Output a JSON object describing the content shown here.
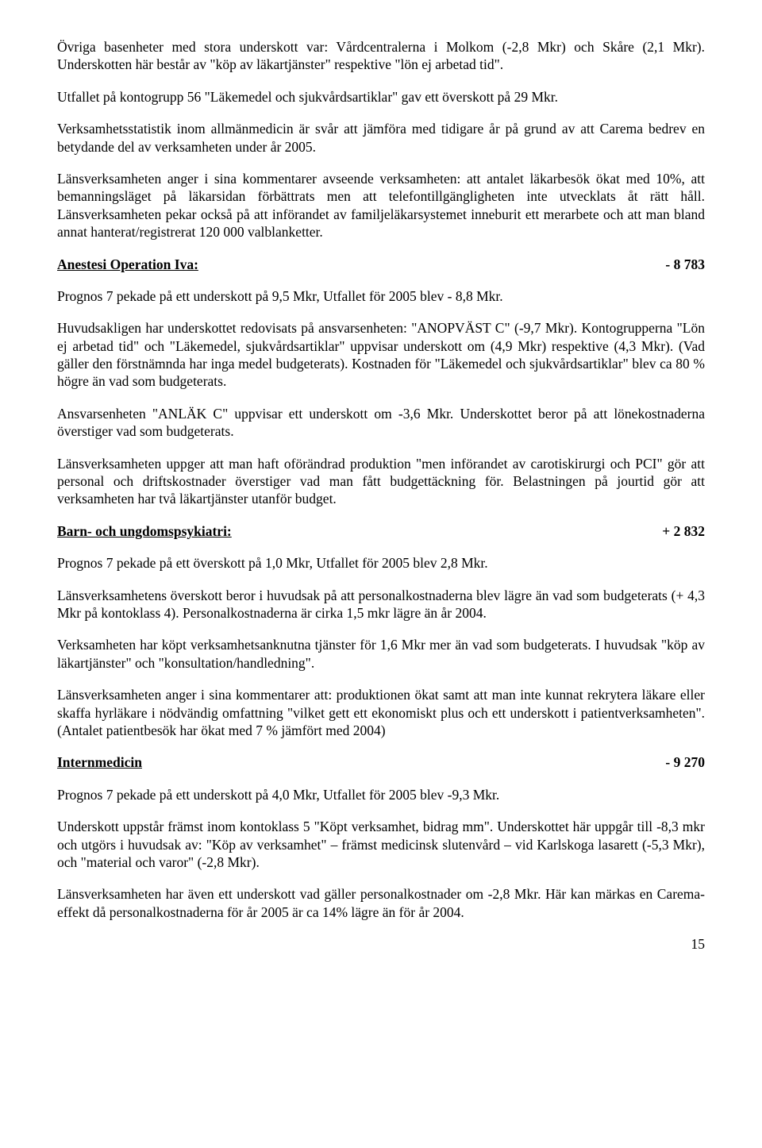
{
  "p1": "Övriga basenheter med stora underskott var: Vårdcentralerna i Molkom (-2,8 Mkr) och Skåre (2,1 Mkr). Underskotten här består av \"köp av läkartjänster\" respektive \"lön ej arbetad tid\".",
  "p2": "Utfallet på kontogrupp 56 \"Läkemedel och sjukvårdsartiklar\" gav ett överskott på 29 Mkr.",
  "p3": "Verksamhetsstatistik inom allmänmedicin är svår att jämföra med tidigare år på grund av att Carema bedrev en betydande del av verksamheten under år 2005.",
  "p4": "Länsverksamheten anger i sina kommentarer avseende verksamheten: att antalet läkarbesök ökat med 10%, att bemanningsläget på läkarsidan förbättrats men att telefontillgängligheten inte utvecklats åt rätt håll. Länsverksamheten pekar också på att införandet av familjeläkarsystemet inneburit ett merarbete och att man bland annat hanterat/registrerat 120 000 valblanketter.",
  "sec1": {
    "label": "Anestesi Operation Iva:",
    "value": "- 8 783"
  },
  "p5": "Prognos 7 pekade på ett underskott på 9,5 Mkr, Utfallet för 2005 blev - 8,8 Mkr.",
  "p6": "Huvudsakligen har underskottet redovisats på ansvarsenheten: \"ANOPVÄST C\" (-9,7 Mkr). Kontogrupperna \"Lön ej arbetad tid\" och \"Läkemedel, sjukvårdsartiklar\" uppvisar underskott om (4,9 Mkr) respektive (4,3 Mkr). (Vad gäller den förstnämnda har inga medel budgeterats). Kostnaden för \"Läkemedel och sjukvårdsartiklar\" blev ca 80 % högre än vad som budgeterats.",
  "p7": "Ansvarsenheten \"ANLÄK C\" uppvisar ett underskott om -3,6 Mkr. Underskottet beror på att lönekostnaderna överstiger vad som budgeterats.",
  "p8": "Länsverksamheten uppger att man haft oförändrad produktion \"men införandet av carotiskirurgi och PCI\" gör att personal och driftskostnader överstiger vad man fått budgettäckning för. Belastningen på jourtid gör att verksamheten har två läkartjänster utanför budget.",
  "sec2": {
    "label": "Barn- och ungdomspsykiatri:",
    "value": "+ 2 832"
  },
  "p9": "Prognos 7 pekade på ett överskott på 1,0 Mkr, Utfallet för 2005 blev 2,8 Mkr.",
  "p10": "Länsverksamhetens överskott beror i huvudsak på att personalkostnaderna blev lägre än vad som budgeterats (+ 4,3 Mkr på kontoklass 4). Personalkostnaderna är cirka 1,5 mkr lägre än år 2004.",
  "p11": "Verksamheten har köpt verksamhetsanknutna tjänster för 1,6 Mkr mer än vad som budgeterats. I huvudsak \"köp av läkartjänster\" och \"konsultation/handledning\".",
  "p12": "Länsverksamheten anger i sina kommentarer att: produktionen ökat samt att man inte kunnat rekrytera läkare eller skaffa hyrläkare i nödvändig omfattning \"vilket gett ett ekonomiskt plus och ett underskott i patientverksamheten\". (Antalet patientbesök har ökat med 7 % jämfört med 2004)",
  "sec3": {
    "label": "Internmedicin",
    "value": "- 9 270"
  },
  "p13": "Prognos 7 pekade på ett underskott på 4,0 Mkr, Utfallet för 2005 blev -9,3 Mkr.",
  "p14": "Underskott uppstår främst inom kontoklass 5 \"Köpt verksamhet, bidrag mm\". Underskottet här uppgår till -8,3 mkr och utgörs i huvudsak av: \"Köp av verksamhet\" – främst medicinsk slutenvård – vid Karlskoga lasarett (-5,3 Mkr), och \"material och varor\" (-2,8 Mkr).",
  "p15": "Länsverksamheten har även ett underskott vad gäller personalkostnader om -2,8 Mkr. Här kan märkas en Carema-effekt då personalkostnaderna för år 2005 är ca 14% lägre än för år 2004.",
  "pageNumber": "15"
}
